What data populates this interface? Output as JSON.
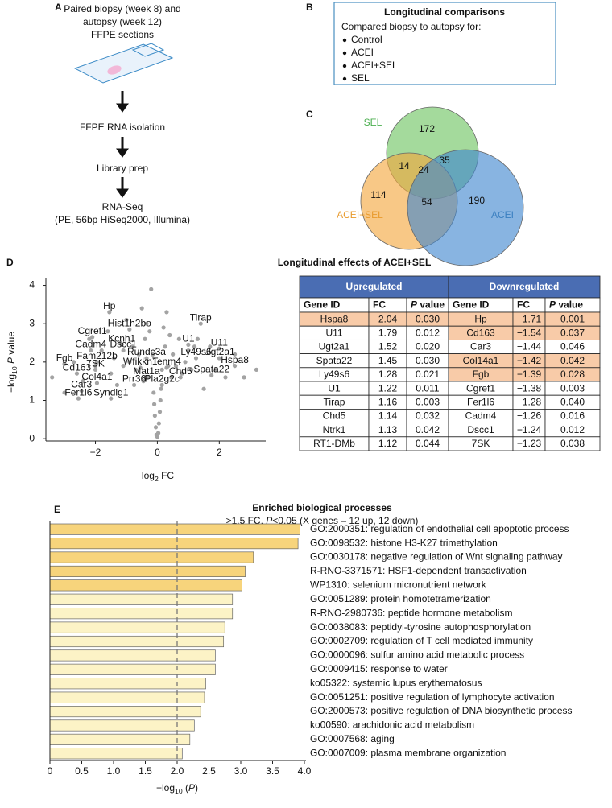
{
  "panel_labels": [
    "A",
    "B",
    "C",
    "D",
    "E"
  ],
  "workflow": {
    "sample": [
      "Paired biopsy (week 8) and",
      "autopsy (week 12)",
      "FFPE sections"
    ],
    "steps": [
      "FFPE RNA isolation",
      "Library prep",
      "RNA-Seq"
    ],
    "note": "(PE, 56bp HiSeq2000, Illumina)"
  },
  "comparisons": {
    "title": "Longitudinal comparisons",
    "intro": "Compared biopsy to autopsy for:",
    "items": [
      "Control",
      "ACEI",
      "ACEI+SEL",
      "SEL"
    ]
  },
  "chart_data": [
    {
      "type": "venn",
      "sets": [
        {
          "name": "SEL",
          "color": "#6cc35f",
          "label_color": "#4caf50"
        },
        {
          "name": "ACEI+SEL",
          "color": "#f3a73b",
          "label_color": "#e89a2c"
        },
        {
          "name": "ACEI",
          "color": "#3f86cf",
          "label_color": "#3a7fc0"
        }
      ],
      "regions": [
        {
          "sets": [
            "SEL"
          ],
          "value": 172
        },
        {
          "sets": [
            "SEL",
            "ACEI+SEL"
          ],
          "value": 14
        },
        {
          "sets": [
            "SEL",
            "ACEI"
          ],
          "value": 35
        },
        {
          "sets": [
            "SEL",
            "ACEI+SEL",
            "ACEI"
          ],
          "value": 24
        },
        {
          "sets": [
            "ACEI+SEL"
          ],
          "value": 114
        },
        {
          "sets": [
            "ACEI+SEL",
            "ACEI"
          ],
          "value": 54
        },
        {
          "sets": [
            "ACEI"
          ],
          "value": 190
        }
      ]
    },
    {
      "type": "scatter",
      "title": "Longitudinal effects of ACEI+SEL",
      "xlabel": {
        "text": "log",
        "sub": "2",
        "rest": " FC"
      },
      "ylabel": {
        "text": "−log",
        "sub": "10",
        "italic": " P",
        "rest": " value"
      },
      "xlim": [
        -3.6,
        3.5
      ],
      "ylim": [
        -0.06,
        4.2
      ],
      "xticks": [
        {
          "value": -2,
          "label": "−2"
        },
        0,
        2
      ],
      "yticks": [
        0,
        1,
        2,
        3,
        4
      ],
      "series": [
        {
          "color": "#a3a3a3",
          "x": [
            -3.4,
            -3.0,
            -2.7,
            -2.4,
            -2.2,
            -2.0,
            -1.8,
            -1.6,
            -1.5,
            -1.4,
            -1.3,
            -1.2,
            -1.1,
            -1.0,
            -0.9,
            -0.8,
            -0.7,
            -0.6,
            -0.5,
            -0.45,
            -0.4,
            -0.35,
            -0.3,
            -0.25,
            -0.2,
            -0.15,
            -0.12,
            -0.1,
            -0.08,
            -0.05,
            -0.03,
            0,
            0.03,
            0.05,
            0.08,
            0.1,
            0.12,
            0.15,
            0.2,
            0.25,
            0.3,
            0.35,
            0.4,
            0.45,
            0.5,
            0.6,
            0.7,
            0.8,
            0.9,
            1.0,
            1.1,
            1.2,
            1.3,
            1.5,
            1.7,
            1.9,
            2.2,
            2.5,
            2.8,
            3.2
          ],
          "y": [
            1.6,
            1.2,
            2.0,
            1.5,
            2.6,
            1.9,
            2.3,
            2.8,
            1.7,
            2.1,
            1.4,
            2.5,
            1.9,
            3.1,
            2.0,
            2.4,
            1.8,
            2.2,
            3.4,
            1.5,
            2.6,
            3.0,
            1.6,
            2.8,
            3.9,
            2.2,
            1.2,
            0.9,
            0.6,
            0.3,
            0.1,
            0.05,
            0.15,
            0.4,
            0.7,
            1.0,
            1.3,
            1.8,
            2.9,
            2.4,
            3.3,
            1.9,
            2.7,
            1.6,
            2.2,
            1.9,
            2.6,
            1.7,
            2.0,
            2.3,
            1.8,
            2.4,
            2.6,
            1.3,
            2.4,
            1.8,
            1.6,
            2.2,
            1.6,
            1.8
          ]
        },
        {
          "color": "#a3a3a3",
          "labels": [
            "Hp",
            "Hist1h2bo",
            "Cgref1",
            "Kcnh1",
            "Cadm4",
            "Dscc1",
            "Fam212b",
            "Rundc3a",
            "7SK",
            "Wfikkn1",
            "Tenm4",
            "Fgb",
            "Cd163",
            "Col4a1",
            "Mat1a",
            "Prr36",
            "Pla2g2c",
            "Car3",
            "Chd5",
            "Fer1l6",
            "Syndig1",
            "Tirap",
            "U1",
            "U11",
            "Ly49s6",
            "Ugt2a1",
            "Hspa8",
            "Spata22"
          ],
          "x": [
            -1.55,
            -0.9,
            -2.1,
            -1.15,
            -2.15,
            -1.1,
            -1.95,
            -0.35,
            -2.0,
            -0.55,
            0.3,
            -3.0,
            -2.6,
            -1.95,
            -0.35,
            -0.75,
            0.15,
            -2.45,
            0.75,
            -2.55,
            -1.5,
            1.4,
            1.0,
            2.0,
            1.25,
            2.0,
            2.5,
            1.75
          ],
          "y": [
            3.3,
            2.85,
            2.65,
            2.45,
            2.3,
            2.3,
            2.0,
            2.1,
            1.8,
            1.85,
            1.85,
            1.95,
            1.7,
            1.45,
            1.6,
            1.4,
            1.4,
            1.25,
            1.6,
            1.05,
            1.05,
            3.0,
            2.45,
            2.35,
            2.1,
            2.1,
            1.9,
            1.65
          ]
        }
      ]
    },
    {
      "type": "barh",
      "title": "Enriched biological processes",
      "subtitle": {
        "text": ">1.5 FC, ",
        "italic": "P",
        "rest": "<0.05 (X genes – 12 up, 12 down)"
      },
      "xlabel": {
        "text": "−log",
        "sub": "10",
        "pre": " (",
        "italic": "P",
        "rest": ")"
      },
      "categories": [
        "GO:2000351: regulation of endothelial cell apoptotic process",
        "GO:0098532: histone H3-K27 trimethylation",
        "GO:0030178: negative regulation of Wnt signaling pathway",
        "R-RNO-3371571: HSF1-dependent transactivation",
        "WP1310: selenium micronutrient network",
        "GO:0051289: protein homotetramerization",
        "R-RNO-2980736: peptide hormone metabolism",
        "GO:0038083: peptidyl-tyrosine autophosphorylation",
        "GO:0002709: regulation of T cell mediated immunity",
        "GO:0000096: sulfur amino acid metabolic process",
        "GO:0009415: response to water",
        "ko05322: systemic lupus erythematosus",
        "GO:0051251: positive regulation of lymphocyte activation",
        "GO:2000573: positive regulation of DNA biosynthetic process",
        "ko00590: arachidonic acid metabolism",
        "GO:0007568: aging",
        "GO:0007009: plasma membrane organization"
      ],
      "values": [
        3.93,
        3.9,
        3.2,
        3.07,
        3.02,
        2.87,
        2.87,
        2.75,
        2.73,
        2.6,
        2.6,
        2.45,
        2.43,
        2.37,
        2.27,
        2.2,
        2.08
      ],
      "colors": [
        "#f7d47c",
        "#f7d47c",
        "#f7d47c",
        "#f7d47c",
        "#f7d47c",
        "#fcf3c6",
        "#fcf3c6",
        "#fcf3c6",
        "#fcf3c6",
        "#fcf3c6",
        "#fcf3c6",
        "#fcf3c6",
        "#fcf3c6",
        "#fcf3c6",
        "#fcf3c6",
        "#fcf3c6",
        "#fcf3c6"
      ],
      "xlim": [
        0,
        4
      ],
      "xticks": [
        0,
        0.5,
        {
          "value": 1,
          "label": "1.0"
        },
        1.5,
        {
          "value": 2,
          "label": "2.0"
        },
        2.5,
        {
          "value": 3,
          "label": "3.0"
        },
        3.5,
        {
          "value": 4,
          "label": "4.0"
        }
      ],
      "threshold": 2
    }
  ],
  "table": {
    "groups": [
      "Upregulated",
      "Downregulated"
    ],
    "header_color": "#4a6db3",
    "highlight_color": "#f8cba8",
    "columns": [
      "Gene ID",
      "FC",
      {
        "italic": "P",
        "rest": " value"
      }
    ],
    "rows": [
      [
        "Hspa8",
        "2.04",
        "0.030",
        "Hp",
        "−1.71",
        "0.001"
      ],
      [
        "U11",
        "1.79",
        "0.012",
        "Cd163",
        "−1.54",
        "0.037"
      ],
      [
        "Ugt2a1",
        "1.52",
        "0.020",
        "Car3",
        "−1.44",
        "0.046"
      ],
      [
        "Spata22",
        "1.45",
        "0.030",
        "Col14a1",
        "−1.42",
        "0.042"
      ],
      [
        "Ly49s6",
        "1.28",
        "0.021",
        "Fgb",
        "−1.39",
        "0.028"
      ],
      [
        "U1",
        "1.22",
        "0.011",
        "Cgref1",
        "−1.38",
        "0.003"
      ],
      [
        "Tirap",
        "1.16",
        "0.003",
        "Fer1l6",
        "−1.28",
        "0.040"
      ],
      [
        "Chd5",
        "1.14",
        "0.032",
        "Cadm4",
        "−1.26",
        "0.016"
      ],
      [
        "Ntrk1",
        "1.13",
        "0.042",
        "Dscc1",
        "−1.24",
        "0.012"
      ],
      [
        "RT1-DMb",
        "1.12",
        "0.044",
        "7SK",
        "−1.23",
        "0.038"
      ]
    ],
    "highlighted": [
      "Hspa8",
      "Hp",
      "Cd163",
      "Col14a1",
      "Fgb"
    ]
  }
}
